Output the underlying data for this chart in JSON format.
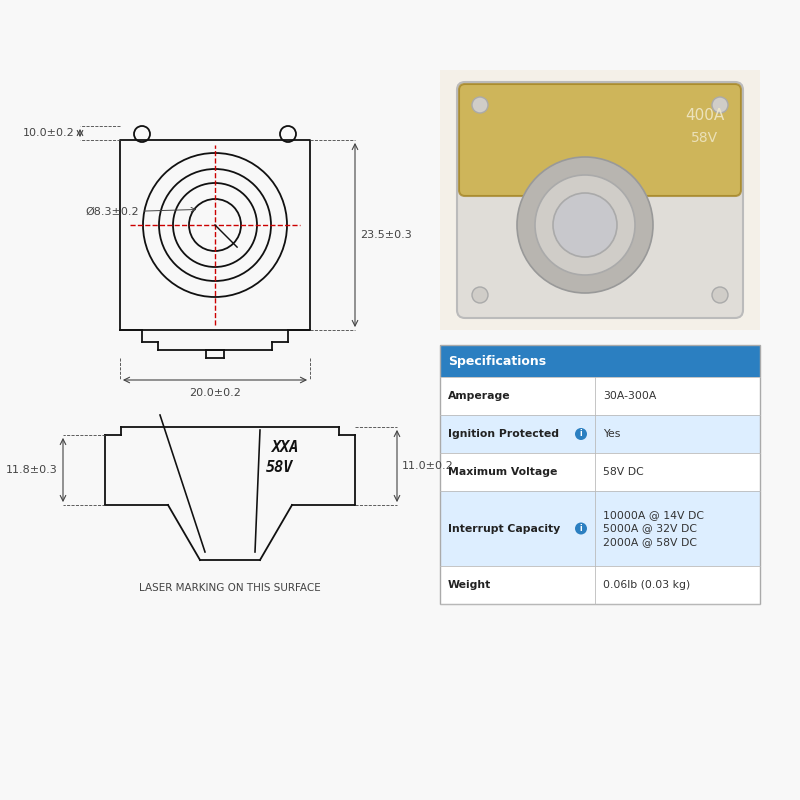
{
  "bg_color": "#f8f8f8",
  "spec_header": "Specifications",
  "spec_header_bg": "#2b7fc1",
  "spec_header_color": "#ffffff",
  "spec_rows": [
    {
      "label": "Amperage",
      "value": "30A-300A",
      "bg": "#ffffff",
      "info": false
    },
    {
      "label": "Ignition Protected",
      "value": "Yes",
      "bg": "#ddeeff",
      "info": true
    },
    {
      "label": "Maximum Voltage",
      "value": "58V DC",
      "bg": "#ffffff",
      "info": false
    },
    {
      "label": "Interrupt Capacity",
      "value": "10000A @ 14V DC\n5000A @ 32V DC\n2000A @ 58V DC",
      "bg": "#ddeeff",
      "info": true
    },
    {
      "label": "Weight",
      "value": "0.06lb (0.03 kg)",
      "bg": "#ffffff",
      "info": false
    }
  ],
  "dim_color": "#444444",
  "red_line_color": "#cc0000",
  "draw_line_color": "#111111",
  "laser_text": "LASER MARKING ON THIS SURFACE",
  "top_dims": {
    "width_label": "20.0±0.2",
    "height_label": "23.5±0.3",
    "top_offset_label": "10.0±0.2",
    "hole_label": "Ø8.3±0.2"
  },
  "side_dims": {
    "height_label": "11.8±0.3",
    "right_label": "11.0±0.2"
  }
}
